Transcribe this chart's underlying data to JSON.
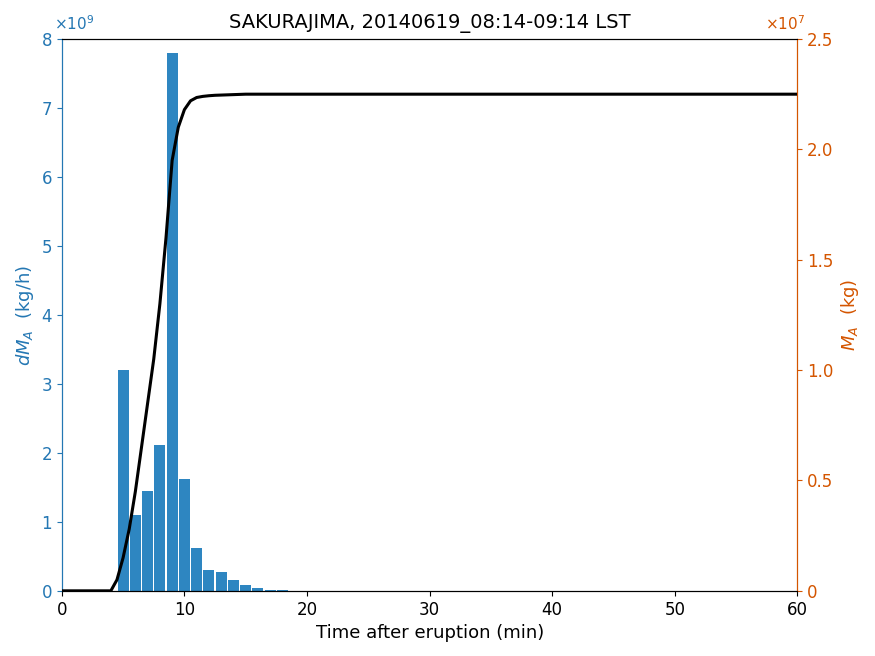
{
  "title": "SAKURAJIMA, 20140619_08:14-09:14 LST",
  "xlabel": "Time after eruption (min)",
  "ylabel_left": "dM_A (kg/h)",
  "ylabel_right": "M_A (kg)",
  "bar_color": "#2E86C1",
  "line_color": "#000000",
  "left_axis_color": "#2477B3",
  "right_axis_color": "#D45500",
  "xlim": [
    0,
    60
  ],
  "ylim_left": [
    0,
    8000000000.0
  ],
  "ylim_right": [
    0,
    25000000.0
  ],
  "bar_centers": [
    5,
    6,
    7,
    8,
    9,
    10,
    11,
    12,
    13,
    14,
    15,
    16,
    17,
    18,
    19,
    20,
    21,
    22,
    23,
    24,
    25,
    26,
    27,
    28,
    29,
    30,
    31,
    32,
    33,
    34,
    35,
    36,
    37,
    38,
    39,
    40,
    41,
    42,
    43,
    44,
    45,
    46,
    47,
    48,
    49,
    50
  ],
  "bar_heights": [
    3200000000.0,
    1100000000.0,
    1450000000.0,
    2120000000.0,
    7800000000.0,
    1620000000.0,
    620000000.0,
    300000000.0,
    280000000.0,
    160000000.0,
    80000000.0,
    40000000.0,
    15000000.0,
    5000000.0,
    3000000.0,
    1000000.0,
    500000.0,
    200000.0,
    100000.0,
    0,
    0,
    0,
    0,
    0,
    0,
    0,
    0,
    0,
    0,
    0,
    0,
    0,
    0,
    0,
    0,
    0,
    0,
    0,
    0,
    0,
    0,
    0,
    0,
    0,
    0,
    0
  ],
  "cumsum_x": [
    0,
    1,
    2,
    3,
    4,
    4.5,
    5,
    5.5,
    6,
    6.5,
    7,
    7.5,
    8,
    8.5,
    9,
    9.5,
    10,
    10.5,
    11,
    11.5,
    12,
    12.5,
    13,
    13.5,
    14,
    14.5,
    15,
    15.5,
    16,
    16.5,
    17,
    17.5,
    18,
    19,
    20,
    21,
    22,
    23,
    24,
    25,
    26,
    27,
    28,
    29,
    30,
    35,
    40,
    45,
    50,
    55,
    60
  ],
  "cumsum_y": [
    0,
    0,
    0,
    0,
    0,
    500000.0,
    1500000.0,
    2800000.0,
    4500000.0,
    6500000.0,
    8500000.0,
    10500000.0,
    13000000.0,
    16000000.0,
    19500000.0,
    21000000.0,
    21800000.0,
    22200000.0,
    22350000.0,
    22400000.0,
    22430000.0,
    22450000.0,
    22460000.0,
    22470000.0,
    22480000.0,
    22490000.0,
    22500000.0,
    22500000.0,
    22500000.0,
    22500000.0,
    22500000.0,
    22500000.0,
    22500000.0,
    22500000.0,
    22500000.0,
    22500000.0,
    22500000.0,
    22500000.0,
    22500000.0,
    22500000.0,
    22500000.0,
    22500000.0,
    22500000.0,
    22500000.0,
    22500000.0,
    22500000.0,
    22500000.0,
    22500000.0,
    22500000.0,
    22500000.0,
    22500000.0
  ],
  "bar_width": 0.9,
  "xticks": [
    0,
    10,
    20,
    30,
    40,
    50,
    60
  ],
  "yticks_left": [
    0,
    1000000000.0,
    2000000000.0,
    3000000000.0,
    4000000000.0,
    5000000000.0,
    6000000000.0,
    7000000000.0,
    8000000000.0
  ],
  "yticks_right": [
    0,
    5000000.0,
    10000000.0,
    15000000.0,
    20000000.0,
    25000000.0
  ],
  "background_color": "#ffffff",
  "title_fontsize": 14,
  "label_fontsize": 13,
  "tick_fontsize": 12
}
